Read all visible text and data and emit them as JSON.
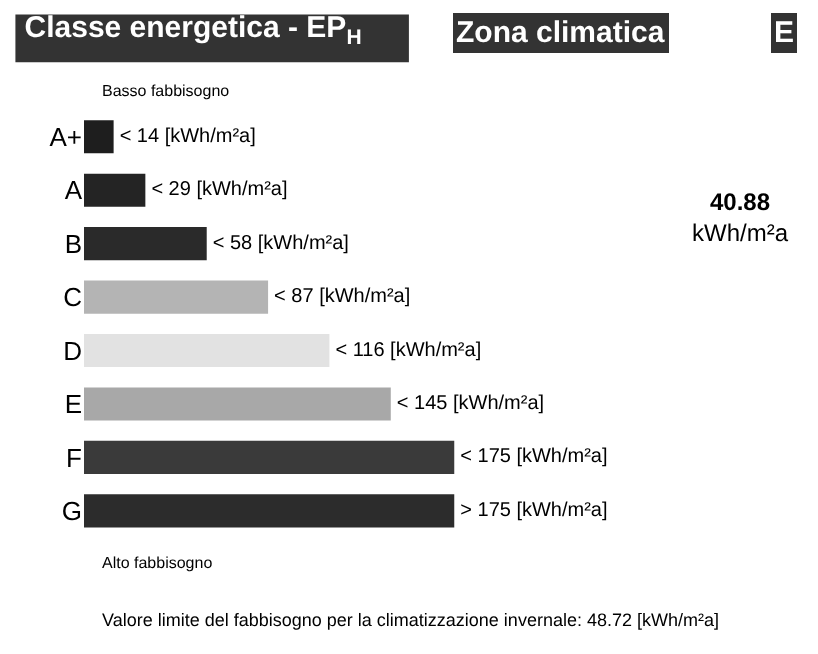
{
  "chart_data": {
    "type": "bar",
    "orientation": "horizontal",
    "title": "Classe energetica - EP$_{H}$",
    "categories": [
      "A+",
      "A",
      "B",
      "C",
      "D",
      "E",
      "F",
      "G"
    ],
    "values": [
      14,
      29,
      58,
      87,
      116,
      145,
      175,
      175
    ],
    "colors": [
      "#1e1e1e",
      "#242424",
      "#2a2a2a",
      "#b4b4b4",
      "#e2e2e2",
      "#a8a8a8",
      "#3a3a3a",
      "#2c2c2c"
    ],
    "value_labels": [
      "< 14 [kWh/m²a]",
      "< 29 [kWh/m²a]",
      "< 58 [kWh/m²a]",
      "< 87 [kWh/m²a]",
      "< 116 [kWh/m²a]",
      "< 145 [kWh/m²a]",
      "< 175 [kWh/m²a]",
      "> 175 [kWh/m²a]"
    ],
    "annotations": [
      "Zona climatica",
      "E",
      "Basso fabbisogno",
      "Alto fabbisogno",
      "40.88 kWh/m²a",
      "Valore limite del fabbisogno per la climatizzazione invernale: 48.72 [kWh/m²a]"
    ]
  }
}
